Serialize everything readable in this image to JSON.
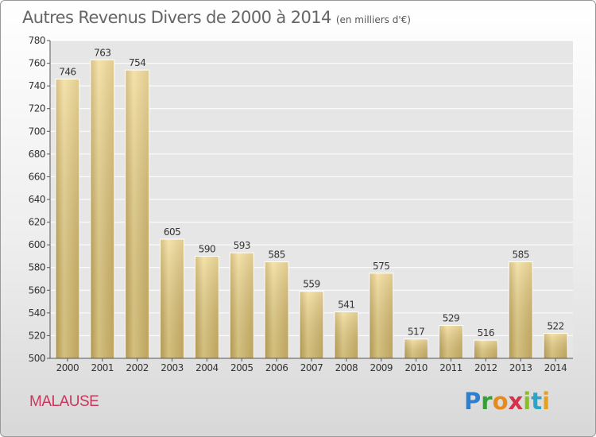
{
  "chart_data": {
    "type": "bar",
    "title": "Autres Revenus Divers de 2000 à 2014",
    "subtitle": "(en milliers d'€)",
    "categories": [
      "2000",
      "2001",
      "2002",
      "2003",
      "2004",
      "2005",
      "2006",
      "2007",
      "2008",
      "2009",
      "2010",
      "2011",
      "2012",
      "2013",
      "2014"
    ],
    "values": [
      746,
      763,
      754,
      605,
      590,
      593,
      585,
      559,
      541,
      575,
      517,
      529,
      516,
      585,
      522
    ],
    "ylim": [
      500,
      780
    ],
    "yticks": [
      500,
      520,
      540,
      560,
      580,
      600,
      620,
      640,
      660,
      680,
      700,
      720,
      740,
      760,
      780
    ],
    "grid": true,
    "bar_color": "#e6c97a",
    "legend": "none"
  },
  "footer": {
    "place_name": "MALAUSE",
    "brand": {
      "l1": "P",
      "l2": "r",
      "l3": "o",
      "l4": "x",
      "l5": "i",
      "l6": "t",
      "l7": "i"
    }
  }
}
